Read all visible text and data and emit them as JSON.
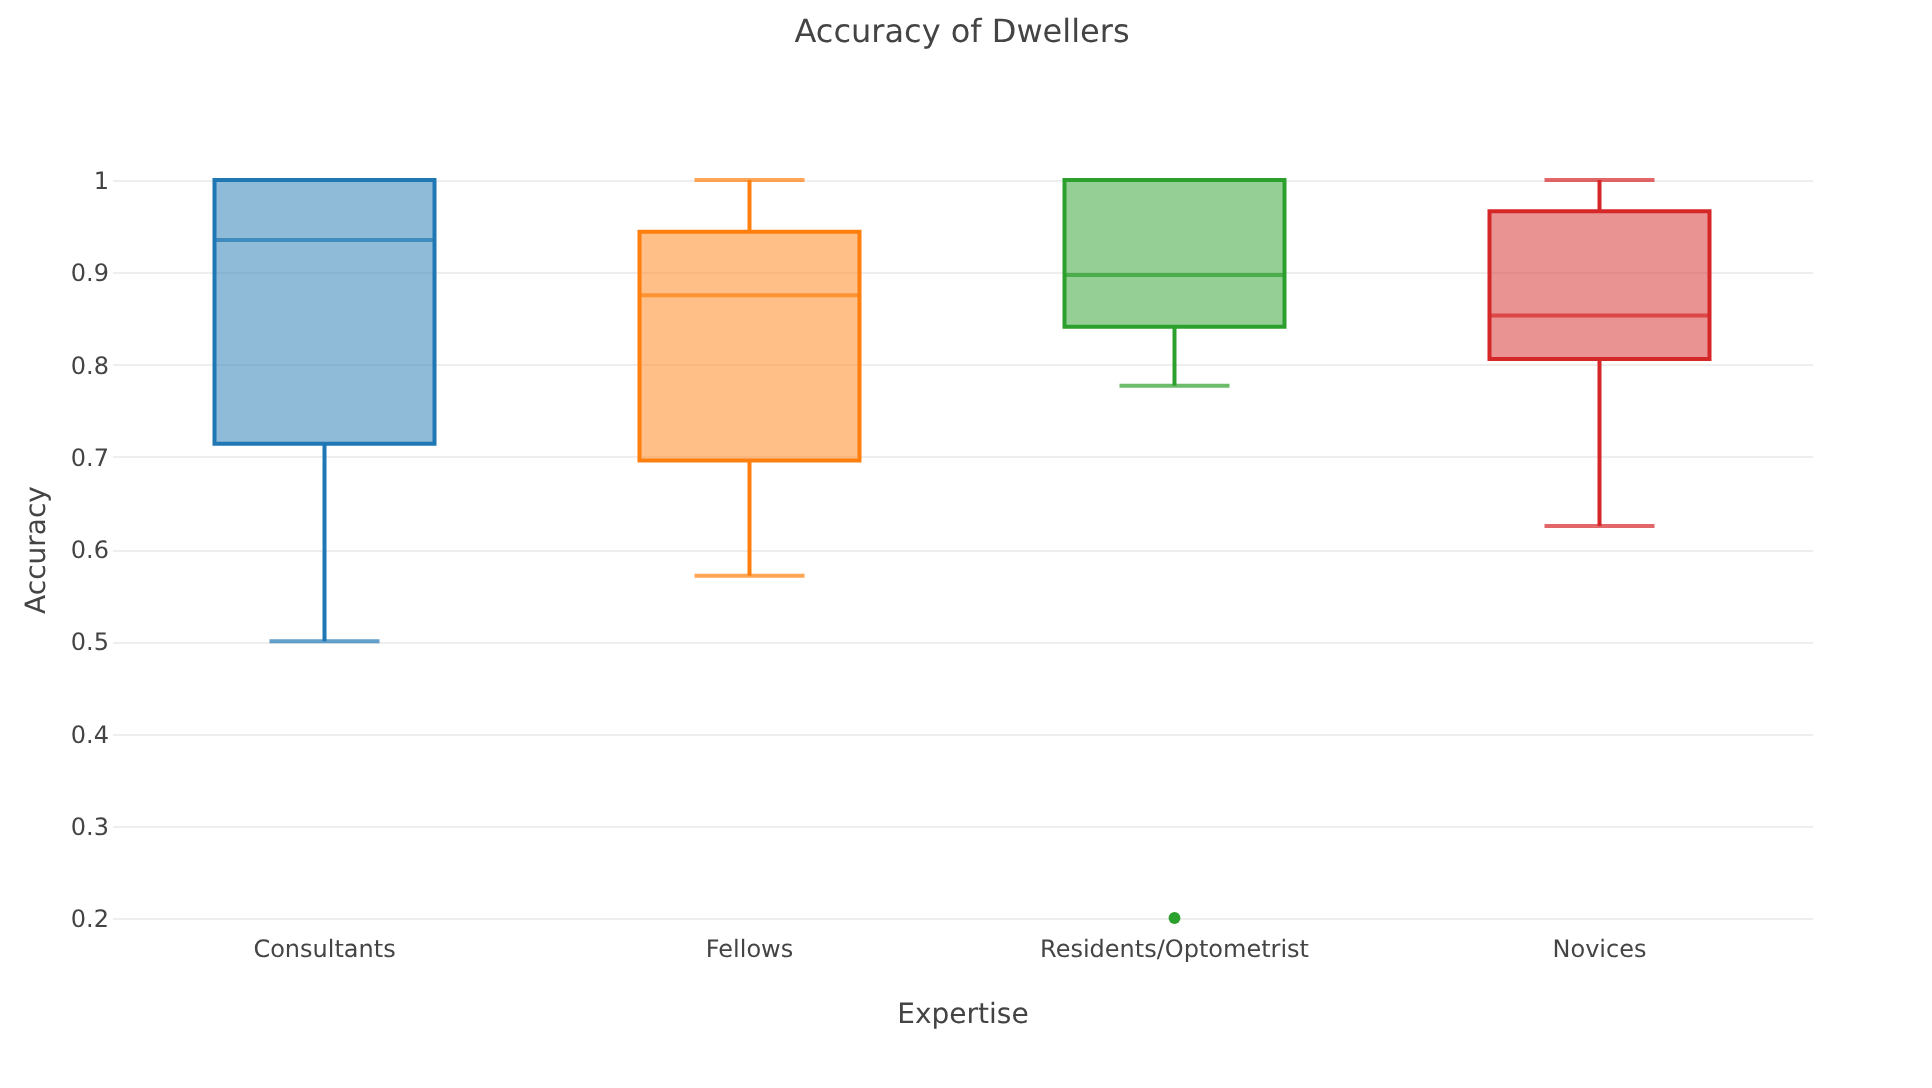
{
  "chart_data": {
    "type": "box",
    "title": "Accuracy of Dwellers",
    "xlabel": "Expertise",
    "ylabel": "Accuracy",
    "categories": [
      "Consultants",
      "Fellows",
      "Residents/Optometrist",
      "Novices"
    ],
    "colors": [
      "#1f77b4",
      "#ff7f0e",
      "#2ca02c",
      "#d62728"
    ],
    "boxes": [
      {
        "low": 0.5,
        "q1": 0.714,
        "median": 0.935,
        "q3": 1.0,
        "high": 1.0
      },
      {
        "low": 0.571,
        "q1": 0.696,
        "median": 0.875,
        "q3": 0.944,
        "high": 1.0
      },
      {
        "low": 0.777,
        "q1": 0.841,
        "median": 0.897,
        "q3": 1.0,
        "high": 1.0,
        "outliers": [
          0.2
        ]
      },
      {
        "low": 0.625,
        "q1": 0.806,
        "median": 0.853,
        "q3": 0.966,
        "high": 1.0
      }
    ],
    "ylim": [
      0.2,
      1
    ],
    "yticks": [
      0.2,
      0.3,
      0.4,
      0.5,
      0.6,
      0.7,
      0.8,
      0.9,
      1
    ],
    "grid": "y",
    "legend": false
  }
}
